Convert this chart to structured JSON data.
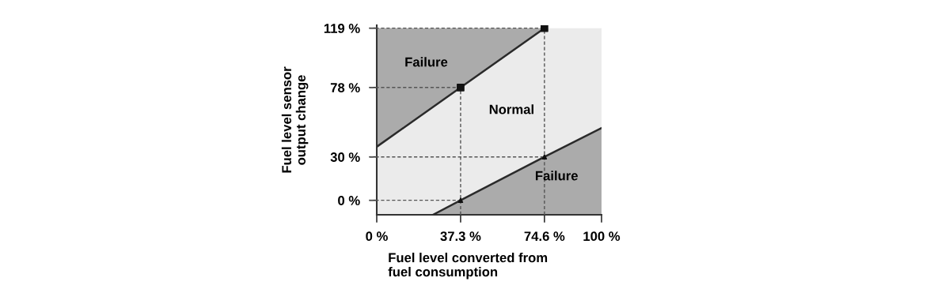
{
  "chart_data": {
    "type": "line",
    "xlabel": "Fuel level converted from\nfuel consumption",
    "ylabel": "Fuel level sensor\noutput change",
    "xlim": [
      0,
      100
    ],
    "ylim": [
      -10,
      121
    ],
    "xticks": [
      {
        "value": 0,
        "label": "0 %"
      },
      {
        "value": 37.3,
        "label": "37.3 %"
      },
      {
        "value": 74.6,
        "label": "74.6 %"
      },
      {
        "value": 100,
        "label": "100 %"
      }
    ],
    "yticks": [
      {
        "value": 0,
        "label": "0 %"
      },
      {
        "value": 30,
        "label": "30 %"
      },
      {
        "value": 78,
        "label": "78 %"
      },
      {
        "value": 119,
        "label": "119 %"
      }
    ],
    "series": [
      {
        "color": "#2a2a2a",
        "x": [
          0,
          37.3,
          74.6
        ],
        "values": [
          37,
          78,
          119
        ]
      },
      {
        "color": "#2a2a2a",
        "x": [
          25,
          37.3,
          74.6,
          100
        ],
        "values": [
          -10,
          0,
          30,
          50
        ]
      },
      {
        "type": "scatter",
        "color": "#111111",
        "marker": "square",
        "x": [
          37.3,
          74.6
        ],
        "values": [
          78,
          119
        ]
      },
      {
        "type": "scatter",
        "color": "#111111",
        "marker": "triangle",
        "x": [
          37.3,
          74.6
        ],
        "values": [
          0,
          30
        ]
      }
    ],
    "ref_lines": [
      {
        "axis": "y",
        "value": 119,
        "line_style": "dashed"
      },
      {
        "axis": "y",
        "value": 78,
        "line_style": "dashed"
      },
      {
        "axis": "y",
        "value": 30,
        "line_style": "dashed"
      },
      {
        "axis": "y",
        "value": 0,
        "line_style": "dashed"
      },
      {
        "axis": "x",
        "value": 37.3,
        "line_style": "dashed"
      },
      {
        "axis": "x",
        "value": 74.6,
        "line_style": "dashed"
      }
    ],
    "annotations": [
      "Failure",
      "Normal",
      "Failure"
    ],
    "grid": false
  }
}
